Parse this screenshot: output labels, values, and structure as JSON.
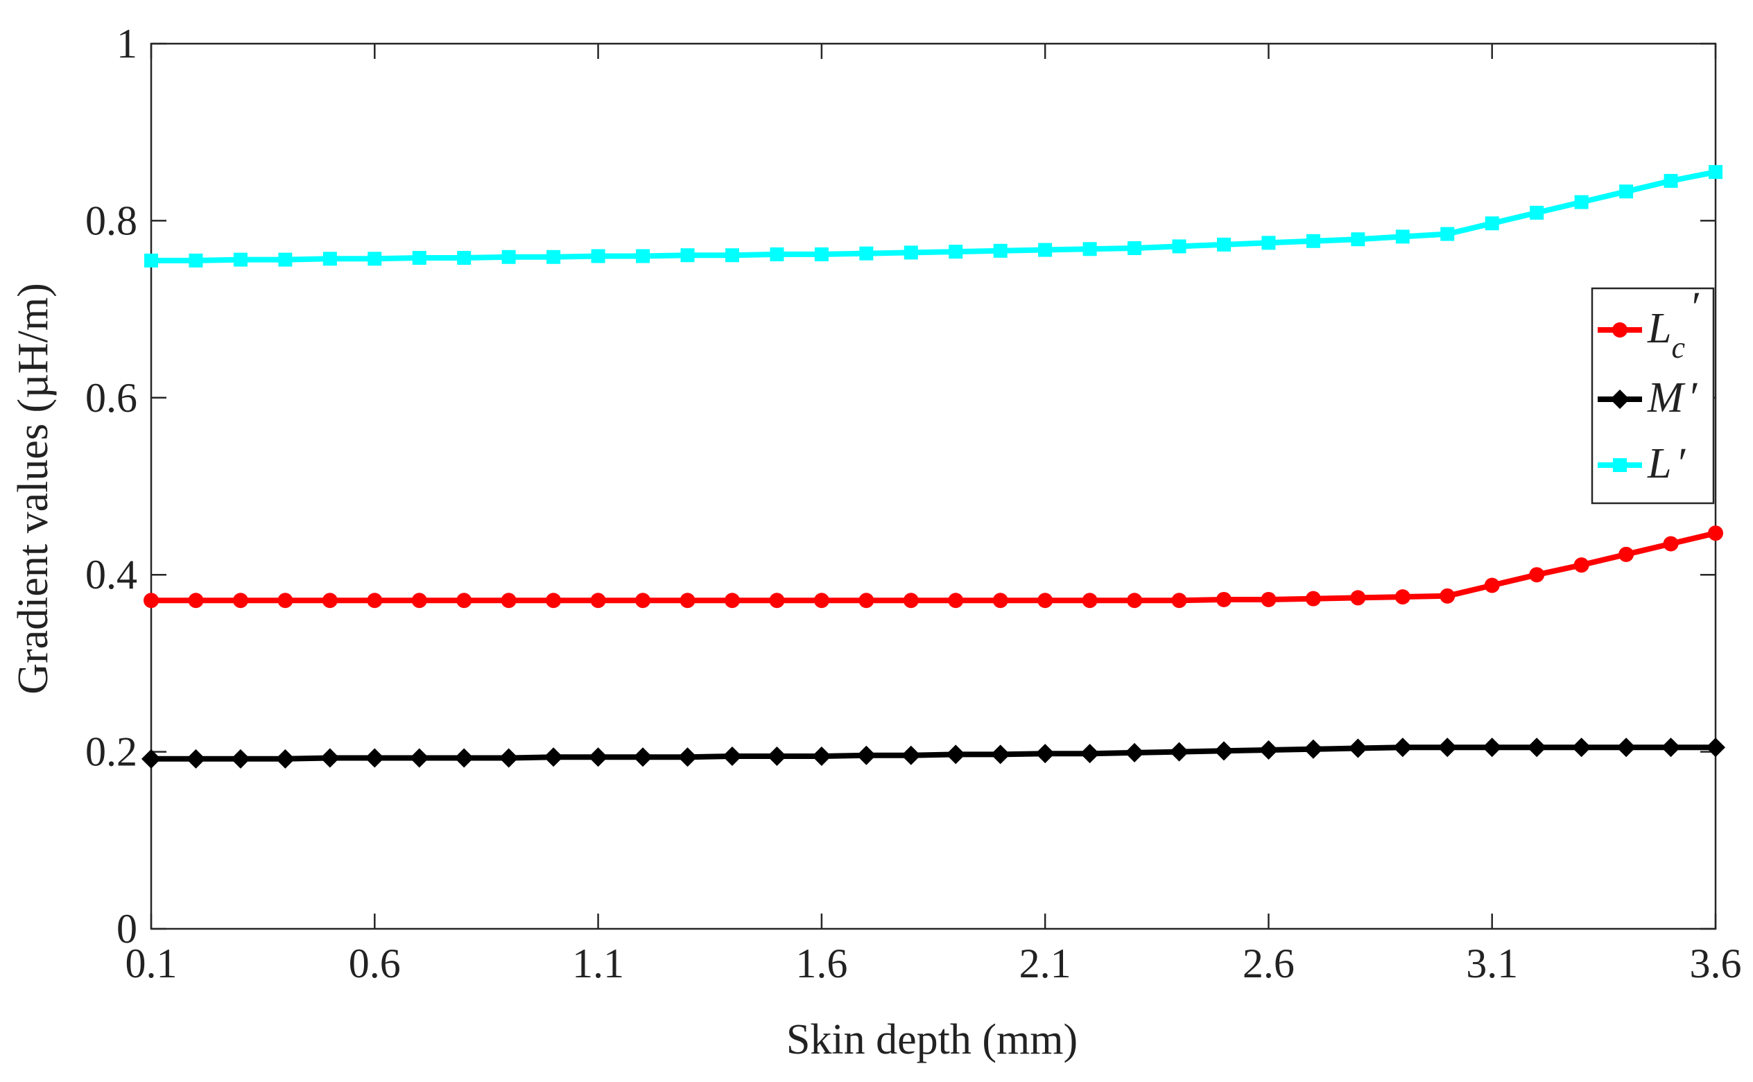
{
  "chart_data": {
    "type": "line",
    "title": "",
    "xlabel": "Skin depth (mm)",
    "ylabel": "Gradient values (µH/m)",
    "xlim": [
      0.1,
      3.6
    ],
    "ylim": [
      0,
      1
    ],
    "xticks": [
      "0.1",
      "0.6",
      "1.1",
      "1.6",
      "2.1",
      "2.6",
      "3.1",
      "3.6"
    ],
    "yticks": [
      "0",
      "0.2",
      "0.4",
      "0.6",
      "0.8",
      "1"
    ],
    "grid": false,
    "legend_position": "right",
    "x": [
      0.1,
      0.2,
      0.3,
      0.4,
      0.5,
      0.6,
      0.7,
      0.8,
      0.9,
      1.0,
      1.1,
      1.2,
      1.3,
      1.4,
      1.5,
      1.6,
      1.7,
      1.8,
      1.9,
      2.0,
      2.1,
      2.2,
      2.3,
      2.4,
      2.5,
      2.6,
      2.7,
      2.8,
      2.9,
      3.0,
      3.1,
      3.2,
      3.3,
      3.4,
      3.5,
      3.6
    ],
    "series": [
      {
        "name": "Lc′",
        "legend_main": "L",
        "legend_sub": "c",
        "legend_prime": "′",
        "color": "#ff0000",
        "marker": "circle",
        "values": [
          0.371,
          0.371,
          0.371,
          0.371,
          0.371,
          0.371,
          0.371,
          0.371,
          0.371,
          0.371,
          0.371,
          0.371,
          0.371,
          0.371,
          0.371,
          0.371,
          0.371,
          0.371,
          0.371,
          0.371,
          0.371,
          0.371,
          0.371,
          0.371,
          0.372,
          0.372,
          0.373,
          0.374,
          0.375,
          0.376,
          0.388,
          0.4,
          0.411,
          0.423,
          0.435,
          0.447
        ]
      },
      {
        "name": "M′",
        "legend_main": "M",
        "legend_sub": "",
        "legend_prime": "′",
        "color": "#000000",
        "marker": "diamond",
        "values": [
          0.192,
          0.192,
          0.192,
          0.192,
          0.193,
          0.193,
          0.193,
          0.193,
          0.193,
          0.194,
          0.194,
          0.194,
          0.194,
          0.195,
          0.195,
          0.195,
          0.196,
          0.196,
          0.197,
          0.197,
          0.198,
          0.198,
          0.199,
          0.2,
          0.201,
          0.202,
          0.203,
          0.204,
          0.205,
          0.205,
          0.205,
          0.205,
          0.205,
          0.205,
          0.205,
          0.205
        ]
      },
      {
        "name": "L′",
        "legend_main": "L",
        "legend_sub": "",
        "legend_prime": "′",
        "color": "#00ffff",
        "marker": "square",
        "values": [
          0.755,
          0.755,
          0.756,
          0.756,
          0.757,
          0.757,
          0.758,
          0.758,
          0.759,
          0.759,
          0.76,
          0.76,
          0.761,
          0.761,
          0.762,
          0.762,
          0.763,
          0.764,
          0.765,
          0.766,
          0.767,
          0.768,
          0.769,
          0.771,
          0.773,
          0.775,
          0.777,
          0.779,
          0.782,
          0.785,
          0.797,
          0.809,
          0.821,
          0.833,
          0.845,
          0.855
        ]
      }
    ]
  }
}
